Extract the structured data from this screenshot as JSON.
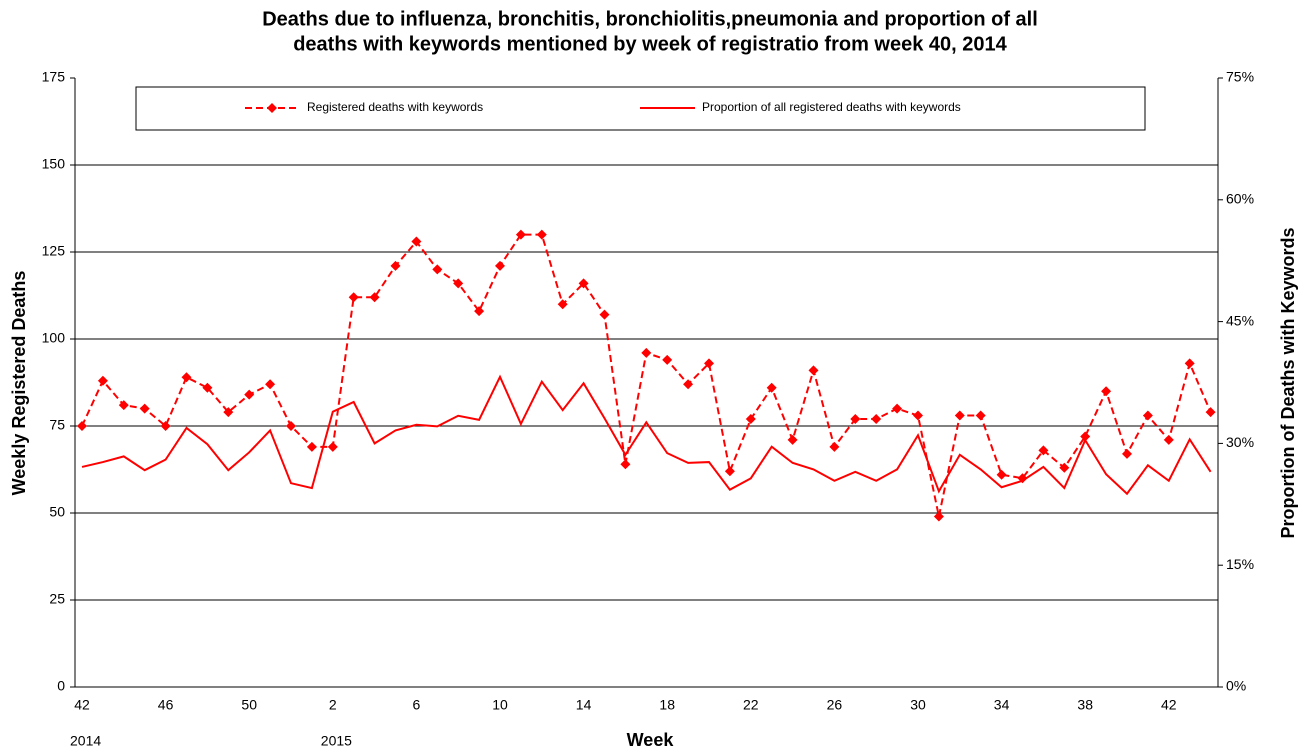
{
  "chart_data": {
    "type": "line",
    "title": [
      "Deaths due to influenza, bronchitis, bronchiolitis,pneumonia and proportion of all",
      "deaths with keywords mentioned by week of registratio from week 40, 2014"
    ],
    "x_label": "Week",
    "y_label": "Weekly Registered Deaths",
    "y2_label": "Proportion of Deaths with Keywords",
    "categories": [
      "42",
      null,
      null,
      null,
      "46",
      null,
      null,
      null,
      "50",
      null,
      null,
      null,
      "2",
      null,
      null,
      null,
      "6",
      null,
      null,
      null,
      "10",
      null,
      null,
      null,
      "14",
      null,
      null,
      null,
      "18",
      null,
      null,
      null,
      "22",
      null,
      null,
      null,
      "26",
      null,
      null,
      null,
      "30",
      null,
      null,
      null,
      "34",
      null,
      null,
      null,
      "38",
      null,
      null,
      null,
      "42",
      null,
      null
    ],
    "x_groups": [
      {
        "label": "2014",
        "start": 0
      },
      {
        "label": "2015",
        "start": 12
      }
    ],
    "ylim": [
      0,
      175
    ],
    "yticks": [
      0,
      25,
      50,
      75,
      100,
      125,
      150,
      175
    ],
    "y2lim": [
      0,
      75
    ],
    "y2ticks": [
      {
        "value": 0,
        "label": "0%"
      },
      {
        "value": 15,
        "label": "15%"
      },
      {
        "value": 30,
        "label": "30%"
      },
      {
        "value": 45,
        "label": "45%"
      },
      {
        "value": 60,
        "label": "60%"
      },
      {
        "value": 75,
        "label": "75%"
      }
    ],
    "grid": true,
    "legend": "top",
    "series": [
      {
        "name": "Registered deaths with keywords",
        "color": "#ff0000",
        "dashed": true,
        "marker": "diamond",
        "values": [
          75,
          88,
          81,
          80,
          75,
          89,
          86,
          79,
          84,
          87,
          75,
          69,
          69,
          112,
          112,
          121,
          128,
          120,
          116,
          108,
          121,
          130,
          130,
          110,
          116,
          107,
          64,
          96,
          94,
          87,
          93,
          62,
          77,
          86,
          71,
          91,
          69,
          77,
          77,
          80,
          78,
          49,
          78,
          78,
          61,
          60,
          68,
          63,
          72,
          85,
          67,
          78,
          71,
          93,
          79
        ]
      },
      {
        "name": "Proportion of all registered deaths with keywords",
        "color": "#ff0000",
        "dashed": false,
        "axis": "y2",
        "values": [
          27.1,
          27.7,
          28.4,
          26.7,
          28.0,
          31.9,
          29.9,
          26.7,
          28.9,
          31.6,
          25.1,
          24.5,
          33.9,
          35.1,
          30.0,
          31.6,
          32.3,
          32.1,
          33.4,
          32.9,
          38.2,
          32.4,
          37.6,
          34.1,
          37.4,
          33.1,
          28.6,
          32.6,
          28.8,
          27.6,
          27.7,
          24.3,
          25.7,
          29.6,
          27.6,
          26.8,
          25.4,
          26.5,
          25.4,
          26.8,
          31.0,
          24.1,
          28.6,
          26.8,
          24.6,
          25.4,
          27.1,
          24.5,
          30.4,
          26.2,
          23.8,
          27.3,
          25.4,
          30.5,
          26.5
        ]
      }
    ]
  }
}
